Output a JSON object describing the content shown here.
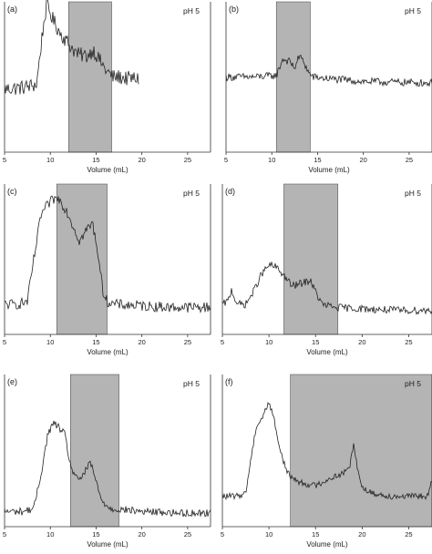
{
  "chart_data": [
    {
      "panel": "(a)",
      "type": "line",
      "annotation": "pH 5",
      "xlabel": "Volume (mL)",
      "xlim": [
        5,
        27.5
      ],
      "xticks": [
        5,
        10,
        15,
        20,
        25
      ],
      "ylabel": "",
      "yticks": false,
      "shaded_region": [
        12,
        16.7
      ],
      "noise": 0.05,
      "series": [
        {
          "x": [
            5,
            7,
            8.5,
            9.2,
            9.6,
            10.3,
            11,
            12,
            13,
            14,
            14.7,
            15.3,
            16,
            16.8,
            17.5,
            18.3,
            19.5
          ],
          "y": [
            0.42,
            0.43,
            0.45,
            0.82,
            0.98,
            0.88,
            0.8,
            0.72,
            0.65,
            0.64,
            0.68,
            0.62,
            0.55,
            0.5,
            0.5,
            0.49,
            0.49
          ]
        }
      ]
    },
    {
      "panel": "(b)",
      "type": "line",
      "annotation": "pH 5",
      "xlabel": "Volume (mL)",
      "xlim": [
        5,
        27.5
      ],
      "xticks": [
        5,
        10,
        15,
        20,
        25
      ],
      "ylabel": "",
      "yticks": false,
      "shaded_region": [
        10.5,
        14.2
      ],
      "noise": 0.025,
      "series": [
        {
          "x": [
            5,
            8,
            10.5,
            11.2,
            12,
            12.5,
            13,
            13.5,
            14,
            14.5,
            16,
            20,
            27.5
          ],
          "y": [
            0.5,
            0.5,
            0.51,
            0.62,
            0.6,
            0.56,
            0.64,
            0.6,
            0.53,
            0.5,
            0.49,
            0.47,
            0.46
          ]
        }
      ]
    },
    {
      "panel": "(c)",
      "type": "line",
      "annotation": "pH 5",
      "xlabel": "Volume (mL)",
      "xlim": [
        5,
        27.5
      ],
      "xticks": [
        5,
        10,
        15,
        20,
        25
      ],
      "ylabel": "",
      "yticks": false,
      "shaded_region": [
        10.7,
        16.2
      ],
      "noise": 0.035,
      "series": [
        {
          "x": [
            5,
            6.5,
            7.5,
            8.2,
            9,
            9.6,
            10.3,
            11,
            11.8,
            12.5,
            13.2,
            14,
            14.6,
            15.2,
            15.7,
            16.2,
            17,
            20,
            23,
            27.5
          ],
          "y": [
            0.2,
            0.2,
            0.22,
            0.5,
            0.8,
            0.85,
            0.9,
            0.9,
            0.82,
            0.72,
            0.62,
            0.7,
            0.74,
            0.55,
            0.3,
            0.22,
            0.2,
            0.19,
            0.18,
            0.18
          ]
        }
      ]
    },
    {
      "panel": "(d)",
      "type": "line",
      "annotation": "pH 5",
      "xlabel": "Volume (mL)",
      "xlim": [
        5,
        27.5
      ],
      "xticks": [
        5,
        10,
        15,
        20,
        25
      ],
      "ylabel": "",
      "yticks": false,
      "shaded_region": [
        11.6,
        17.4
      ],
      "noise": 0.025,
      "series": [
        {
          "x": [
            5,
            5.6,
            6,
            6.3,
            6.7,
            7.5,
            8.3,
            9.2,
            10,
            10.7,
            11.5,
            12.5,
            13.5,
            14.5,
            15,
            15.7,
            17,
            20,
            24,
            27.5
          ],
          "y": [
            0.2,
            0.22,
            0.3,
            0.24,
            0.2,
            0.2,
            0.28,
            0.4,
            0.46,
            0.45,
            0.4,
            0.32,
            0.34,
            0.36,
            0.28,
            0.2,
            0.18,
            0.17,
            0.16,
            0.16
          ]
        }
      ]
    },
    {
      "panel": "(e)",
      "type": "line",
      "annotation": "pH 5",
      "xlabel": "Volume (mL)",
      "xlim": [
        5,
        27.5
      ],
      "xticks": [
        5,
        10,
        15,
        20,
        25
      ],
      "ylabel": "",
      "yticks": false,
      "shaded_region": [
        12.2,
        17.5
      ],
      "noise": 0.025,
      "series": [
        {
          "x": [
            5,
            7,
            8.2,
            9,
            9.7,
            10.3,
            11,
            11.6,
            12.2,
            13,
            13.8,
            14.4,
            15,
            15.5,
            16.5,
            20,
            24,
            27.5
          ],
          "y": [
            0.1,
            0.1,
            0.12,
            0.35,
            0.6,
            0.68,
            0.65,
            0.6,
            0.4,
            0.3,
            0.36,
            0.42,
            0.3,
            0.18,
            0.12,
            0.1,
            0.09,
            0.09
          ]
        }
      ]
    },
    {
      "panel": "(f)",
      "type": "line",
      "annotation": "pH 5",
      "xlabel": "Volume (mL)",
      "xlim": [
        5,
        27.5
      ],
      "xticks": [
        5,
        10,
        15,
        20,
        25
      ],
      "ylabel": "",
      "yticks": false,
      "shaded_region": [
        12.3,
        27.5
      ],
      "noise": 0.02,
      "series": [
        {
          "x": [
            5,
            6.5,
            7.5,
            8,
            8.6,
            9.3,
            10,
            10.5,
            11.2,
            12,
            13,
            14,
            15,
            16,
            17,
            18,
            18.7,
            19.1,
            19.5,
            20,
            21,
            23,
            25,
            27,
            27.5
          ],
          "y": [
            0.2,
            0.2,
            0.22,
            0.42,
            0.65,
            0.72,
            0.82,
            0.72,
            0.5,
            0.35,
            0.3,
            0.28,
            0.27,
            0.3,
            0.33,
            0.35,
            0.4,
            0.56,
            0.38,
            0.26,
            0.22,
            0.2,
            0.2,
            0.2,
            0.3
          ]
        }
      ]
    }
  ],
  "style": {
    "line_color": "#222222",
    "shade_color": "#b4b4b4",
    "axis_color": "#333333"
  }
}
